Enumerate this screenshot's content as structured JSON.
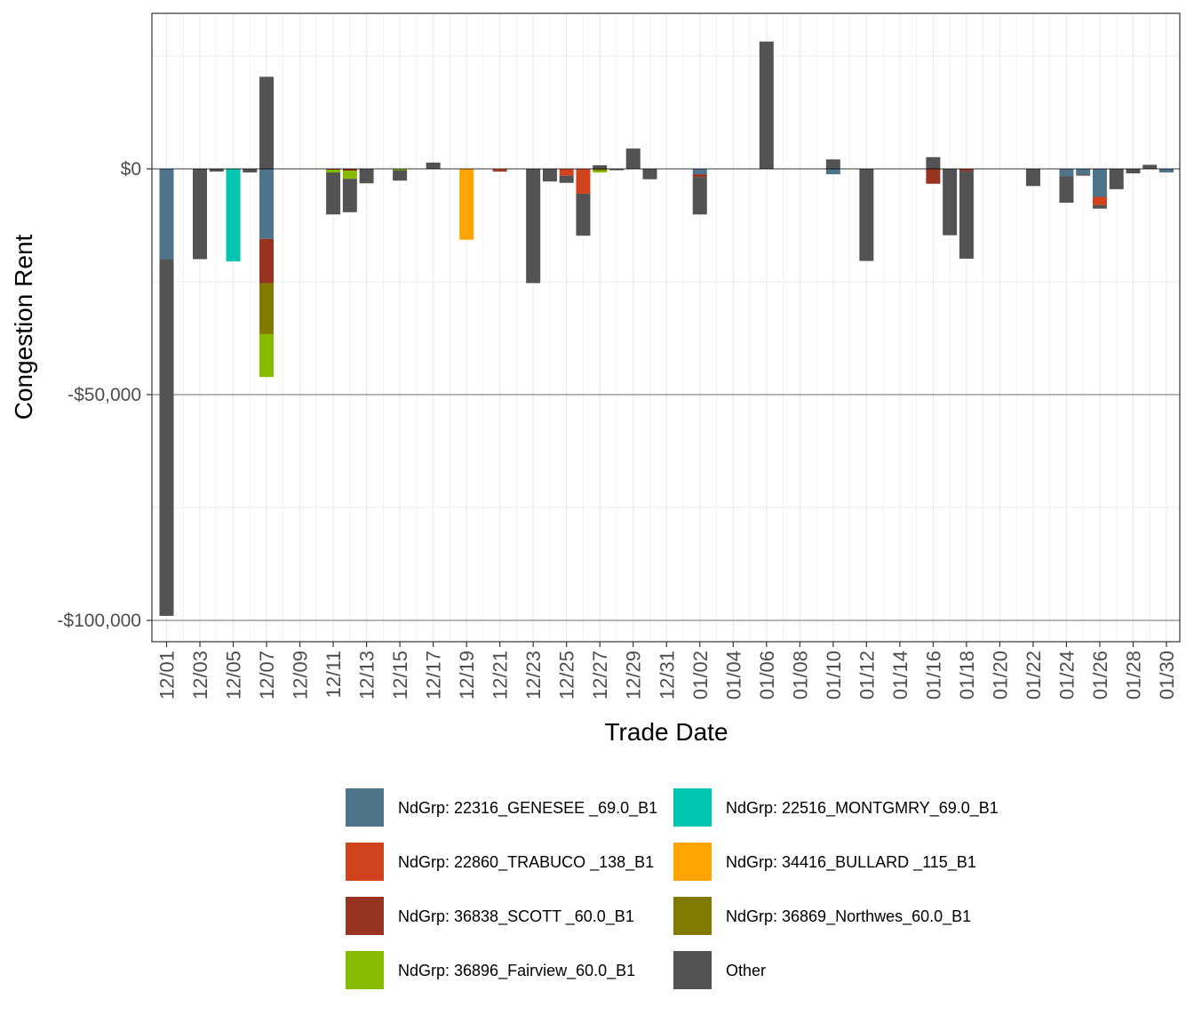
{
  "chart_data": {
    "type": "bar",
    "stacked": true,
    "xlabel": "Trade Date",
    "ylabel": "Congestion Rent",
    "ylim": [
      -105000,
      34000
    ],
    "yticks": [
      {
        "value": 0,
        "label": "$0"
      },
      {
        "value": -50000,
        "label": "-$50,000"
      },
      {
        "value": -100000,
        "label": "-$100,000"
      }
    ],
    "x_tick_labels": [
      "12/01",
      "12/03",
      "12/05",
      "12/07",
      "12/09",
      "12/11",
      "12/13",
      "12/15",
      "12/17",
      "12/19",
      "12/21",
      "12/23",
      "12/25",
      "12/27",
      "12/29",
      "12/31",
      "01/02",
      "01/04",
      "01/06",
      "01/08",
      "01/10",
      "01/12",
      "01/14",
      "01/16",
      "01/18",
      "01/20",
      "01/22",
      "01/24",
      "01/26",
      "01/28",
      "01/30"
    ],
    "grid": true,
    "legend_position": "bottom",
    "categories": [
      "12/01",
      "12/02",
      "12/03",
      "12/04",
      "12/05",
      "12/06",
      "12/07",
      "12/08",
      "12/09",
      "12/10",
      "12/11",
      "12/12",
      "12/13",
      "12/14",
      "12/15",
      "12/16",
      "12/17",
      "12/18",
      "12/19",
      "12/20",
      "12/21",
      "12/22",
      "12/23",
      "12/24",
      "12/25",
      "12/26",
      "12/27",
      "12/28",
      "12/29",
      "12/30",
      "12/31",
      "01/01",
      "01/02",
      "01/03",
      "01/04",
      "01/05",
      "01/06",
      "01/07",
      "01/08",
      "01/09",
      "01/10",
      "01/11",
      "01/12",
      "01/13",
      "01/14",
      "01/15",
      "01/16",
      "01/17",
      "01/18",
      "01/19",
      "01/20",
      "01/21",
      "01/22",
      "01/23",
      "01/24",
      "01/25",
      "01/26",
      "01/27",
      "01/28",
      "01/29",
      "01/30"
    ],
    "series": [
      {
        "name": "NdGrp: 22316_GENESEE _69.0_B1",
        "color": "#4e7489",
        "values": [
          -20000,
          0,
          0,
          0,
          0,
          0,
          -15500,
          0,
          0,
          0,
          0,
          0,
          0,
          0,
          0,
          0,
          0,
          0,
          0,
          0,
          0,
          0,
          0,
          0,
          0,
          0,
          0,
          0,
          0,
          0,
          0,
          0,
          -1200,
          0,
          0,
          0,
          0,
          0,
          0,
          0,
          -1200,
          0,
          0,
          0,
          0,
          0,
          0,
          0,
          0,
          0,
          0,
          0,
          0,
          0,
          -1600,
          -1200,
          -6200,
          0,
          0,
          0,
          -800
        ]
      },
      {
        "name": "NdGrp: 22516_MONTGMRY_69.0_B1",
        "color": "#00c5b0",
        "values": [
          0,
          0,
          0,
          0,
          -20500,
          0,
          0,
          0,
          0,
          0,
          0,
          0,
          0,
          0,
          0,
          0,
          0,
          0,
          0,
          0,
          0,
          0,
          0,
          0,
          0,
          0,
          0,
          0,
          0,
          0,
          0,
          0,
          0,
          0,
          0,
          0,
          0,
          0,
          0,
          0,
          0,
          0,
          0,
          0,
          0,
          0,
          0,
          0,
          0,
          0,
          0,
          0,
          0,
          0,
          0,
          0,
          0,
          0,
          0,
          0,
          0
        ]
      },
      {
        "name": "NdGrp: 22860_TRABUCO _138_B1",
        "color": "#d1431c",
        "values": [
          0,
          0,
          0,
          0,
          0,
          0,
          0,
          0,
          0,
          0,
          0,
          0,
          0,
          0,
          0,
          0,
          0,
          0,
          0,
          0,
          -300,
          0,
          0,
          0,
          -1500,
          -5500,
          0,
          0,
          0,
          0,
          0,
          0,
          0,
          0,
          0,
          0,
          0,
          0,
          0,
          0,
          0,
          0,
          0,
          0,
          0,
          0,
          0,
          0,
          0,
          0,
          0,
          0,
          0,
          0,
          0,
          0,
          -1800,
          0,
          0,
          0,
          0
        ]
      },
      {
        "name": "NdGrp: 34416_BULLARD _115_B1",
        "color": "#ffa400",
        "values": [
          0,
          0,
          0,
          0,
          0,
          0,
          0,
          0,
          0,
          0,
          0,
          0,
          0,
          0,
          0,
          0,
          0,
          0,
          -15700,
          0,
          0,
          0,
          0,
          0,
          0,
          0,
          0,
          0,
          0,
          0,
          0,
          0,
          0,
          0,
          0,
          0,
          0,
          0,
          0,
          0,
          0,
          0,
          0,
          0,
          0,
          0,
          0,
          0,
          0,
          0,
          0,
          0,
          0,
          0,
          0,
          0,
          0,
          0,
          0,
          0,
          0
        ]
      },
      {
        "name": "NdGrp: 36838_SCOTT   _60.0_B1",
        "color": "#963321",
        "values": [
          0,
          0,
          0,
          0,
          0,
          0,
          -9800,
          0,
          0,
          0,
          -200,
          -400,
          0,
          0,
          0,
          0,
          0,
          0,
          0,
          0,
          -300,
          0,
          0,
          0,
          0,
          0,
          0,
          0,
          0,
          0,
          0,
          0,
          -600,
          0,
          0,
          0,
          0,
          0,
          0,
          0,
          0,
          0,
          0,
          0,
          0,
          0,
          -3300,
          0,
          -500,
          0,
          0,
          0,
          0,
          0,
          0,
          0,
          0,
          0,
          0,
          0,
          0
        ]
      },
      {
        "name": "NdGrp: 36869_Northwes_60.0_B1",
        "color": "#817a00",
        "values": [
          0,
          0,
          0,
          0,
          0,
          0,
          -11300,
          0,
          0,
          0,
          0,
          0,
          0,
          0,
          0,
          0,
          0,
          0,
          0,
          0,
          0,
          0,
          0,
          0,
          0,
          0,
          -400,
          0,
          0,
          0,
          0,
          0,
          0,
          0,
          0,
          0,
          0,
          0,
          0,
          0,
          0,
          0,
          0,
          0,
          0,
          0,
          0,
          0,
          0,
          0,
          0,
          0,
          0,
          0,
          0,
          0,
          0,
          0,
          0,
          0,
          0
        ]
      },
      {
        "name": "NdGrp: 36896_Fairview_60.0_B1",
        "color": "#86bb00",
        "values": [
          0,
          0,
          0,
          0,
          0,
          0,
          -9500,
          0,
          0,
          0,
          -600,
          -1800,
          0,
          0,
          -300,
          0,
          0,
          0,
          0,
          0,
          0,
          0,
          0,
          0,
          0,
          0,
          -400,
          0,
          0,
          0,
          0,
          0,
          0,
          0,
          0,
          0,
          0,
          0,
          0,
          0,
          0,
          0,
          0,
          0,
          0,
          0,
          0,
          0,
          0,
          0,
          0,
          0,
          0,
          0,
          0,
          0,
          0,
          0,
          0,
          0,
          0
        ]
      },
      {
        "name": "Other",
        "color": "#535353",
        "values": [
          -79000,
          0,
          -20000,
          -600,
          0,
          -800,
          20400,
          0,
          0,
          0,
          -9300,
          -7400,
          -3200,
          0,
          -2300,
          0,
          1400,
          0,
          0,
          0,
          0,
          0,
          -25300,
          -2800,
          -1600,
          -9300,
          800,
          -300,
          4500,
          -2300,
          0,
          0,
          -8300,
          0,
          0,
          0,
          28200,
          0,
          0,
          0,
          2100,
          0,
          -20400,
          0,
          0,
          0,
          2600,
          -14700,
          -19400,
          0,
          0,
          0,
          -3800,
          0,
          -5900,
          -300,
          -800,
          -4500,
          -1000,
          900,
          0
        ]
      }
    ]
  },
  "legend": {
    "items": [
      {
        "label": "NdGrp: 22316_GENESEE _69.0_B1",
        "color": "#4e7489"
      },
      {
        "label": "NdGrp: 22516_MONTGMRY_69.0_B1",
        "color": "#00c5b0"
      },
      {
        "label": "NdGrp: 22860_TRABUCO _138_B1",
        "color": "#d1431c"
      },
      {
        "label": "NdGrp: 34416_BULLARD _115_B1",
        "color": "#ffa400"
      },
      {
        "label": "NdGrp: 36838_SCOTT   _60.0_B1",
        "color": "#963321"
      },
      {
        "label": "NdGrp: 36869_Northwes_60.0_B1",
        "color": "#817a00"
      },
      {
        "label": "NdGrp: 36896_Fairview_60.0_B1",
        "color": "#86bb00"
      },
      {
        "label": "Other",
        "color": "#535353"
      }
    ]
  }
}
